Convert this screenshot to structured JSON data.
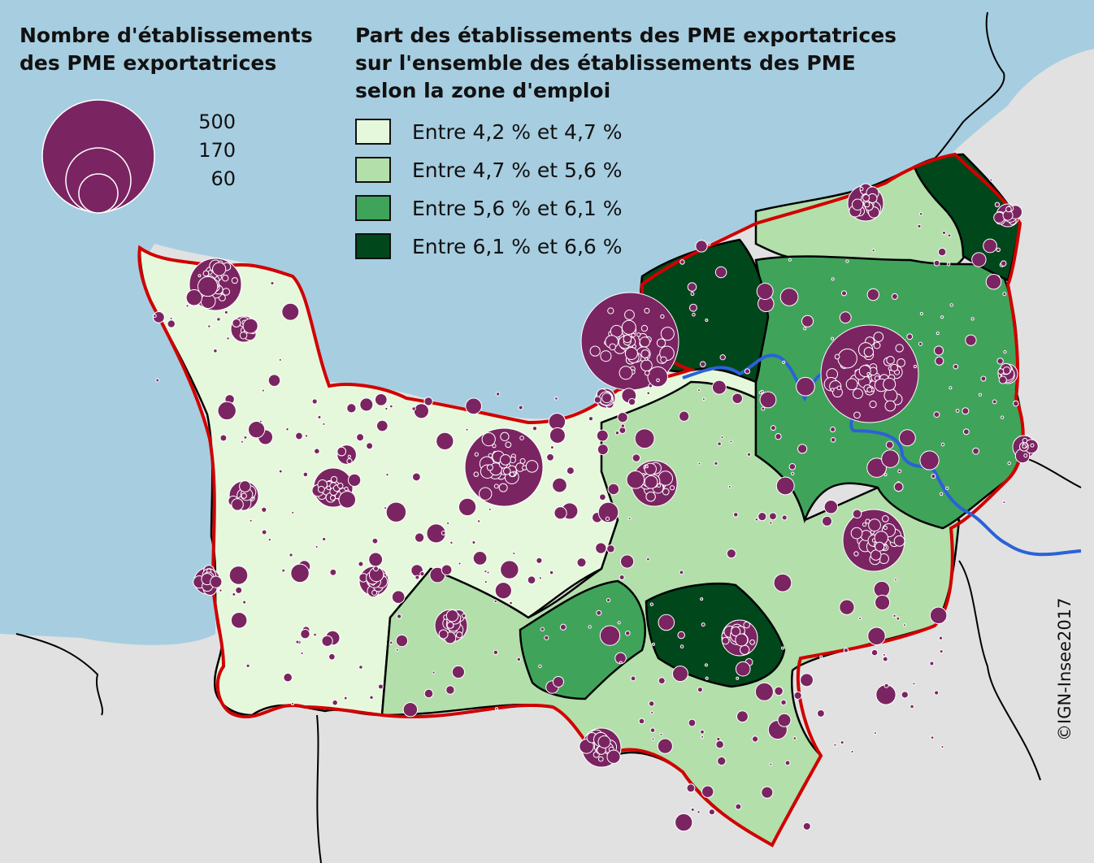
{
  "legend_size": {
    "title": "Nombre d'établissements\ndes PME exportatrices",
    "values": [
      "500",
      "170",
      "60"
    ]
  },
  "legend_share": {
    "title": "Part des établissements des PME exportatrices\nsur l'ensemble des établissements des PME\nselon la zone d'emploi",
    "classes": [
      {
        "label": "Entre 4,2 % et 4,7 %",
        "color": "#e6f8dc"
      },
      {
        "label": "Entre 4,7 % et 5,6 %",
        "color": "#b3dfaa"
      },
      {
        "label": "Entre 5,6 % et 6,1 %",
        "color": "#3fa45a"
      },
      {
        "label": "Entre 6,1 % et 6,6 %",
        "color": "#00471b"
      }
    ]
  },
  "credit": "©IGN-Insee2017",
  "colors": {
    "sea": "#a7cde0",
    "land_outside": "#e1e1e1",
    "region_border": "#d10000",
    "zone_border": "#000000",
    "river": "#2a62d8",
    "circle": "#7b2462"
  }
}
